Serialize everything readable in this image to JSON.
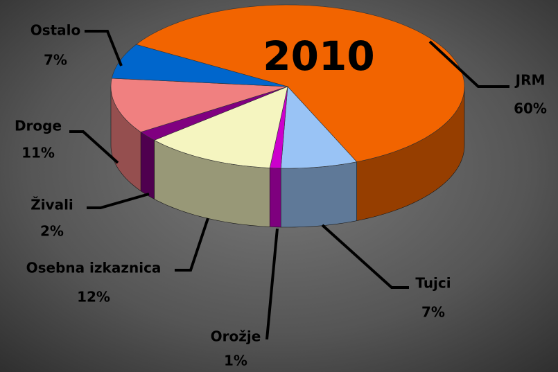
{
  "chart_data": {
    "type": "pie",
    "title": "2010",
    "categories": [
      "JRM",
      "Tujci",
      "Orožje",
      "Osebna izkaznica",
      "Živali",
      "Droge",
      "Ostalo"
    ],
    "values": [
      60,
      7,
      1,
      12,
      2,
      11,
      7
    ],
    "value_labels": [
      "60%",
      "7%",
      "1%",
      "12%",
      "2%",
      "11%",
      "7%"
    ],
    "colors": [
      "#f26400",
      "#99c3f5",
      "#cc00cc",
      "#f5f5c0",
      "#800080",
      "#f08080",
      "#0066cc"
    ]
  }
}
